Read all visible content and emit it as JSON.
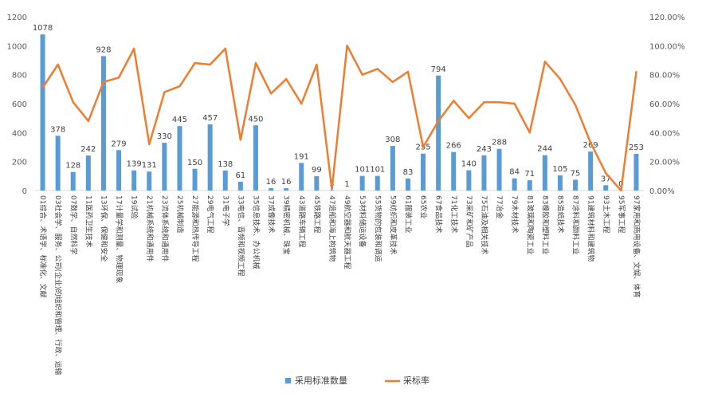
{
  "chart_data": {
    "type": "bar",
    "categories": [
      "01综合、术语学、标准化、文献",
      "03社会学、服务、公司(企业)的组织和管理、行政、运输",
      "07数学、自然科学",
      "11医药卫生技术",
      "13环保、保健和安全",
      "17计量学和测量、物理现象",
      "19试验",
      "21机械系统和通用件",
      "23流体系统和通用件",
      "25机械制造",
      "27能源和热传导工程",
      "29电气工程",
      "31电子学",
      "33电信、音频和视频工程",
      "35信息技术、办公机械",
      "37成像技术",
      "39精密机械、珠宝",
      "43道路车辆工程",
      "45铁路工程",
      "47造船和海上构筑物",
      "49航空器和航天器工程",
      "53材料储运设备",
      "55货物的包装和调运",
      "59纺织和皮革技术",
      "61服装工业",
      "65农业",
      "67食品技术",
      "71化工技术",
      "73采矿和矿产品",
      "75石油及相关技术",
      "77冶金",
      "79木材技术",
      "81玻璃和陶瓷工业",
      "83橡胶和塑料工业",
      "85造纸技术",
      "87涂料和颜料工业",
      "91建筑材料和建筑物",
      "93土木工程",
      "95军事工程",
      "97家用和商用设备、文娱、体育"
    ],
    "series": [
      {
        "name": "采用标准数量",
        "axis": "left",
        "color": "#5b9bd5",
        "values": [
          1078,
          378,
          128,
          242,
          928,
          279,
          139,
          131,
          330,
          445,
          150,
          457,
          138,
          61,
          450,
          16,
          16,
          191,
          99,
          3,
          1,
          101,
          101,
          308,
          83,
          255,
          794,
          266,
          140,
          243,
          288,
          84,
          71,
          244,
          105,
          75,
          269,
          37,
          0,
          253
        ]
      },
      {
        "name": "采标率",
        "axis": "right",
        "color": "#ed7d31",
        "values": [
          0.71,
          0.87,
          0.61,
          0.48,
          0.75,
          0.78,
          0.98,
          0.32,
          0.68,
          0.72,
          0.88,
          0.87,
          0.98,
          0.35,
          0.88,
          0.67,
          0.77,
          0.6,
          0.87,
          0.01,
          1.0,
          0.8,
          0.84,
          0.75,
          0.82,
          0.3,
          0.48,
          0.62,
          0.5,
          0.61,
          0.61,
          0.6,
          0.4,
          0.89,
          0.77,
          0.59,
          0.33,
          0.12,
          0.0,
          0.82
        ]
      }
    ],
    "y_left": {
      "min": 0,
      "max": 1200,
      "ticks": [
        "0",
        "200",
        "400",
        "600",
        "800",
        "1000",
        "1200"
      ]
    },
    "y_right": {
      "min": 0,
      "max": 1.2,
      "ticks": [
        "0.00%",
        "20.00%",
        "40.00%",
        "60.00%",
        "80.00%",
        "100.00%",
        "120.00%"
      ]
    },
    "grid": false,
    "legend_position": "bottom",
    "data_labels": true
  }
}
